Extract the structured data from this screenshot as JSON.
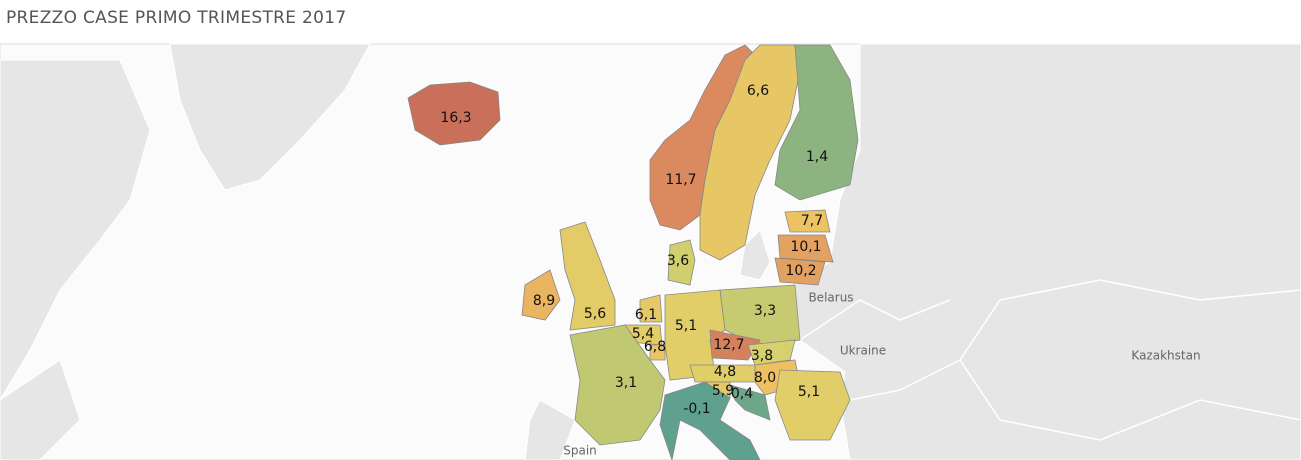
{
  "chart_data": {
    "type": "choropleth",
    "title": "PREZZO CASE PRIMO TRIMESTRE 2017",
    "values": [
      16.3,
      11.7,
      6.6,
      1.4,
      7.7,
      10.1,
      10.2,
      3.6,
      8.9,
      5.6,
      6.1,
      5.4,
      6.8,
      5.1,
      3.3,
      12.7,
      3.8,
      4.8,
      8.0,
      5.9,
      0.4,
      -0.1,
      5.1,
      3.1
    ],
    "value_labels": [
      "16,3",
      "11,7",
      "6,6",
      "1,4",
      "7,7",
      "10,1",
      "10,2",
      "3,6",
      "8,9",
      "5,6",
      "6,1",
      "5,4",
      "6,8",
      "5,1",
      "3,3",
      "12,7",
      "3,8",
      "4,8",
      "8,0",
      "5,9",
      "0,4",
      "-0,1",
      "5,1",
      "3,1"
    ],
    "color_scale": [
      "#5fa08e",
      "#dcd36a",
      "#eec062",
      "#d7835e",
      "#c96f5a"
    ],
    "base_labels": [
      "Belarus",
      "Ukraine",
      "Kazakhstan",
      "Spain"
    ]
  }
}
